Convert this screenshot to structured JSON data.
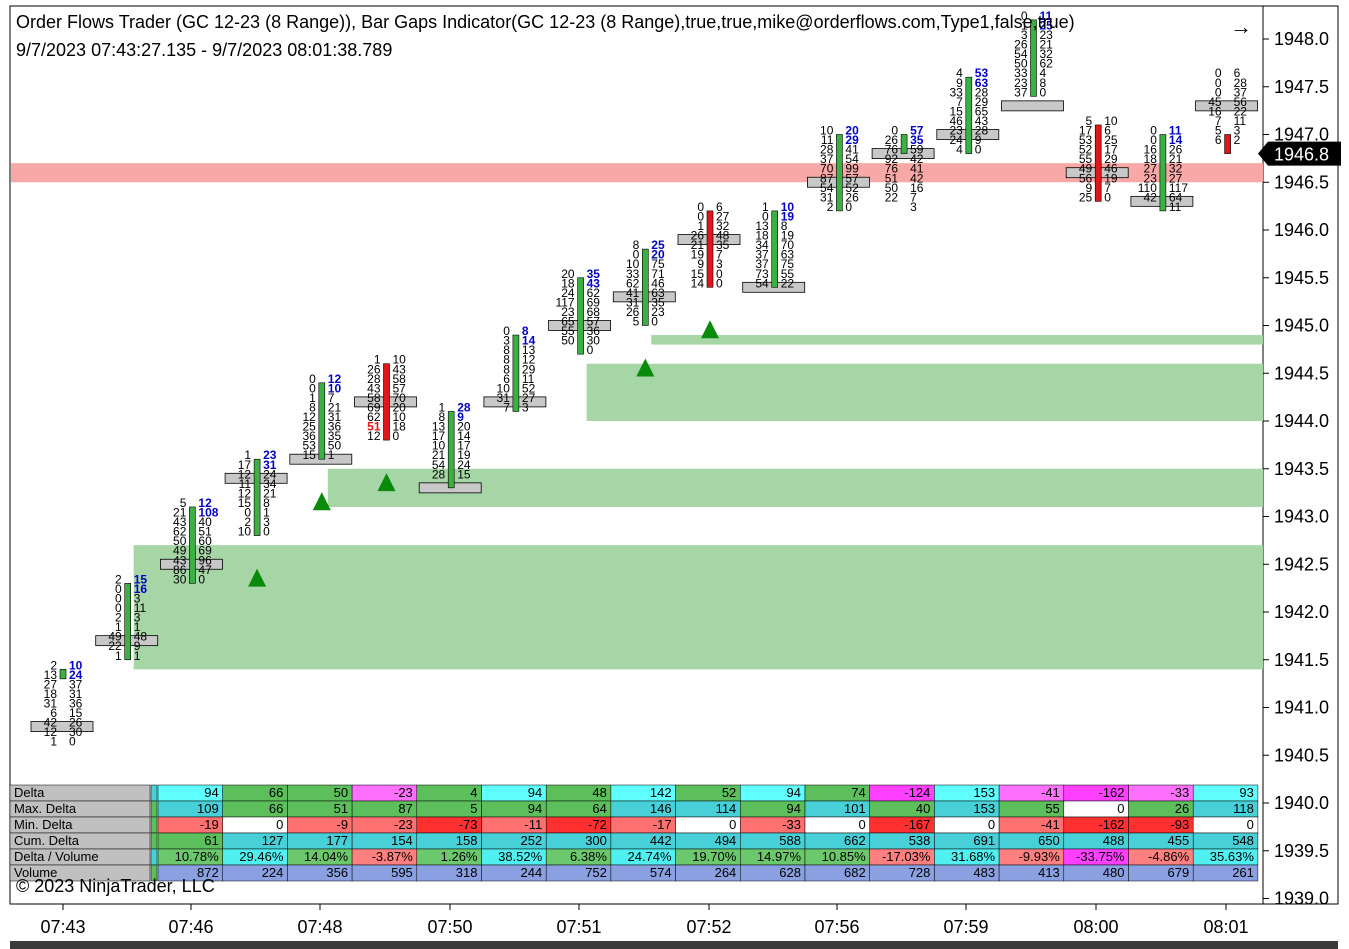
{
  "window": {
    "title": "Order Flows Trader (GC 12-23 (8 Range)), Bar Gaps Indicator(GC 12-23 (8 Range),true,true,mike@orderflows.com,Type1,false,true)",
    "range": "9/7/2023 07:43:27.135 - 9/7/2023 08:01:38.789",
    "copyright": "© 2023 NinjaTrader, LLC",
    "nav_arrow": "→"
  },
  "colors": {
    "up": "#3cb043",
    "down": "#e0161b",
    "gap_up": "#a6d5a6",
    "gap_down": "#f9a8a8",
    "poc": "#c8c8c8",
    "blue": "#0000c8",
    "red": "#e61414",
    "marker": "#0a8a0a"
  },
  "chart_data": {
    "type": "table",
    "y_axis": {
      "min": 1939.0,
      "max": 1948.0,
      "ticks": [
        "1948.0",
        "1947.5",
        "1947.0",
        "1946.5",
        "1946.0",
        "1945.5",
        "1945.0",
        "1944.5",
        "1944.0",
        "1943.5",
        "1943.0",
        "1942.5",
        "1942.0",
        "1941.5",
        "1941.0",
        "1940.5",
        "1940.0",
        "1939.5",
        "1939.0"
      ],
      "last_price": "1946.8"
    },
    "x_labels": [
      "07:43",
      "07:46",
      "07:48",
      "07:50",
      "07:51",
      "07:52",
      "07:56",
      "07:59",
      "08:00",
      "08:01"
    ],
    "gaps": [
      {
        "type": "down",
        "from": 1946.5,
        "to": 1946.7,
        "start_bar": 0
      },
      {
        "type": "up",
        "from": 1941.4,
        "to": 1942.7,
        "start_bar": 1
      },
      {
        "type": "up",
        "from": 1943.1,
        "to": 1943.5,
        "start_bar": 4
      },
      {
        "type": "up",
        "from": 1944.0,
        "to": 1944.6,
        "start_bar": 8
      },
      {
        "type": "up",
        "from": 1944.8,
        "to": 1944.9,
        "start_bar": 9
      }
    ],
    "triangles": [
      3,
      4,
      5,
      9,
      10
    ],
    "bars": [
      {
        "top": 1941.4,
        "open": 1941.3,
        "close": 1941.4,
        "poc": 1940.8,
        "dir": "up",
        "bid": [
          "2",
          "13",
          "27",
          "18",
          "31",
          "6",
          "42",
          "12",
          "1"
        ],
        "ask": [
          "10",
          "24",
          "37",
          "31",
          "36",
          "15",
          "26",
          "30",
          "0"
        ]
      },
      {
        "top": 1942.3,
        "open": 1941.5,
        "close": 1942.3,
        "poc": 1941.7,
        "dir": "up",
        "bid": [
          "2",
          "0",
          "0",
          "0",
          "2",
          "1",
          "49",
          "22",
          "1"
        ],
        "ask": [
          "15",
          "16",
          "3",
          "11",
          "3",
          "1",
          "48",
          "9",
          "1"
        ]
      },
      {
        "top": 1943.1,
        "open": 1942.3,
        "close": 1943.1,
        "poc": 1942.5,
        "dir": "up",
        "bid": [
          "5",
          "21",
          "43",
          "62",
          "50",
          "49",
          "43",
          "86",
          "30"
        ],
        "ask": [
          "12",
          "108",
          "40",
          "51",
          "60",
          "69",
          "96",
          "47",
          "0"
        ]
      },
      {
        "top": 1943.6,
        "open": 1942.8,
        "close": 1943.6,
        "poc": 1943.4,
        "dir": "up",
        "bid": [
          "1",
          "17",
          "12",
          "11",
          "12",
          "15",
          "0",
          "2",
          "10"
        ],
        "ask": [
          "23",
          "31",
          "24",
          "34",
          "21",
          "8",
          "1",
          "3",
          "0"
        ]
      },
      {
        "top": 1944.4,
        "open": 1943.6,
        "close": 1944.4,
        "poc": 1943.6,
        "dir": "up",
        "bid": [
          "0",
          "0",
          "1",
          "8",
          "12",
          "25",
          "36",
          "53",
          "15"
        ],
        "ask": [
          "12",
          "10",
          "7",
          "21",
          "31",
          "36",
          "35",
          "50",
          "1"
        ]
      },
      {
        "top": 1944.6,
        "open": 1944.6,
        "close": 1943.8,
        "poc": 1944.2,
        "dir": "down",
        "bid": [
          "1",
          "26",
          "28",
          "43",
          "58",
          "69",
          "62",
          "51",
          "12"
        ],
        "ask": [
          "10",
          "43",
          "58",
          "57",
          "70",
          "20",
          "10",
          "18",
          "0"
        ]
      },
      {
        "top": 1944.1,
        "open": 1943.3,
        "close": 1944.1,
        "poc": 1943.3,
        "dir": "up",
        "bid": [
          "1",
          "8",
          "13",
          "17",
          "10",
          "21",
          "54",
          "28"
        ],
        "ask": [
          "28",
          "9",
          "20",
          "14",
          "17",
          "19",
          "24",
          "15"
        ]
      },
      {
        "top": 1944.9,
        "open": 1944.1,
        "close": 1944.9,
        "poc": 1944.2,
        "dir": "up",
        "bid": [
          "0",
          "3",
          "8",
          "8",
          "8",
          "6",
          "10",
          "31",
          "7"
        ],
        "ask": [
          "8",
          "14",
          "13",
          "12",
          "29",
          "11",
          "52",
          "27",
          "3"
        ]
      },
      {
        "top": 1945.5,
        "open": 1944.7,
        "close": 1945.5,
        "poc": 1945.0,
        "dir": "up",
        "bid": [
          "20",
          "18",
          "24",
          "117",
          "23",
          "65",
          "55",
          "50"
        ],
        "ask": [
          "35",
          "43",
          "62",
          "69",
          "68",
          "57",
          "36",
          "30",
          "0"
        ]
      },
      {
        "top": 1945.8,
        "open": 1945.0,
        "close": 1945.8,
        "poc": 1945.3,
        "dir": "up",
        "bid": [
          "8",
          "0",
          "10",
          "33",
          "62",
          "41",
          "31",
          "26",
          "5"
        ],
        "ask": [
          "25",
          "20",
          "75",
          "71",
          "46",
          "63",
          "35",
          "23",
          "0"
        ]
      },
      {
        "top": 1946.2,
        "open": 1946.2,
        "close": 1945.4,
        "poc": 1945.9,
        "dir": "down",
        "bid": [
          "0",
          "0",
          "1",
          "26",
          "21",
          "19",
          "9",
          "15",
          "14"
        ],
        "ask": [
          "6",
          "27",
          "32",
          "48",
          "35",
          "7",
          "3",
          "0",
          "0"
        ]
      },
      {
        "top": 1946.2,
        "open": 1945.4,
        "close": 1946.2,
        "poc": 1945.4,
        "dir": "up",
        "bid": [
          "1",
          "0",
          "13",
          "18",
          "34",
          "37",
          "37",
          "73",
          "54"
        ],
        "ask": [
          "10",
          "19",
          "8",
          "19",
          "70",
          "63",
          "75",
          "55",
          "22"
        ]
      },
      {
        "top": 1947.0,
        "open": 1946.2,
        "close": 1947.0,
        "poc": 1946.5,
        "dir": "up",
        "bid": [
          "10",
          "11",
          "28",
          "37",
          "70",
          "87",
          "54",
          "31",
          "2"
        ],
        "ask": [
          "20",
          "29",
          "41",
          "54",
          "99",
          "57",
          "52",
          "26",
          "0"
        ]
      },
      {
        "top": 1947.0,
        "open": 1946.8,
        "close": 1947.0,
        "poc": 1946.8,
        "dir": "up",
        "bid": [
          "0",
          "26",
          "76",
          "92",
          "76",
          "51",
          "50",
          "22"
        ],
        "ask": [
          "57",
          "35",
          "59",
          "42",
          "41",
          "42",
          "16",
          "7",
          "3"
        ]
      },
      {
        "top": 1947.6,
        "open": 1946.8,
        "close": 1947.6,
        "poc": 1947.0,
        "dir": "up",
        "bid": [
          "4",
          "9",
          "33",
          "7",
          "15",
          "46",
          "23",
          "24",
          "4"
        ],
        "ask": [
          "53",
          "63",
          "28",
          "29",
          "65",
          "43",
          "28",
          "9",
          "0"
        ]
      },
      {
        "top": 1948.2,
        "open": 1947.4,
        "close": 1948.2,
        "poc": 1947.3,
        "dir": "up",
        "bid": [
          "0",
          "1",
          "3",
          "26",
          "54",
          "50",
          "33",
          "23",
          "37"
        ],
        "ask": [
          "11",
          "25",
          "23",
          "21",
          "32",
          "62",
          "4",
          "8",
          "0"
        ]
      },
      {
        "top": 1947.1,
        "open": 1947.1,
        "close": 1946.3,
        "poc": 1946.6,
        "dir": "down",
        "bid": [
          "5",
          "17",
          "53",
          "52",
          "55",
          "49",
          "56",
          "9",
          "25"
        ],
        "ask": [
          "10",
          "6",
          "25",
          "17",
          "29",
          "46",
          "19",
          "7",
          "0"
        ]
      },
      {
        "top": 1947.0,
        "open": 1946.2,
        "close": 1947.0,
        "poc": 1946.3,
        "dir": "up",
        "bid": [
          "0",
          "0",
          "16",
          "18",
          "27",
          "23",
          "110",
          "42"
        ],
        "ask": [
          "11",
          "14",
          "26",
          "21",
          "32",
          "27",
          "117",
          "64",
          "11"
        ]
      },
      {
        "top": 1947.6,
        "open": 1947.0,
        "close": 1946.8,
        "poc": 1947.3,
        "dir": "down",
        "bid": [
          "0",
          "0",
          "0",
          "45",
          "16",
          "7",
          "5",
          "6"
        ],
        "ask": [
          "6",
          "28",
          "37",
          "56",
          "22",
          "11",
          "3",
          "2"
        ]
      }
    ],
    "table": {
      "rows": [
        {
          "label": "Delta",
          "values": [
            "94",
            "66",
            "50",
            "-23",
            "4",
            "94",
            "48",
            "142",
            "52",
            "94",
            "74",
            "-124",
            "153",
            "-41",
            "-162",
            "-33",
            "93"
          ]
        },
        {
          "label": "Max. Delta",
          "values": [
            "109",
            "66",
            "51",
            "87",
            "5",
            "94",
            "64",
            "146",
            "114",
            "94",
            "101",
            "40",
            "153",
            "55",
            "0",
            "26",
            "118"
          ]
        },
        {
          "label": "Min. Delta",
          "values": [
            "-19",
            "0",
            "-9",
            "-23",
            "-73",
            "-11",
            "-72",
            "-17",
            "0",
            "-33",
            "0",
            "-167",
            "0",
            "-41",
            "-162",
            "-93",
            "0"
          ]
        },
        {
          "label": "Cum. Delta",
          "values": [
            "61",
            "127",
            "177",
            "154",
            "158",
            "252",
            "300",
            "442",
            "494",
            "588",
            "662",
            "538",
            "691",
            "650",
            "488",
            "455",
            "548"
          ]
        },
        {
          "label": "Delta / Volume",
          "values": [
            "10.78%",
            "29.46%",
            "14.04%",
            "-3.87%",
            "1.26%",
            "38.52%",
            "6.38%",
            "24.74%",
            "19.70%",
            "14.97%",
            "10.85%",
            "-17.03%",
            "31.68%",
            "-9.93%",
            "-33.75%",
            "-4.86%",
            "35.63%"
          ]
        },
        {
          "label": "Volume",
          "values": [
            "872",
            "224",
            "356",
            "595",
            "318",
            "244",
            "752",
            "574",
            "264",
            "628",
            "682",
            "728",
            "483",
            "413",
            "480",
            "679",
            "261"
          ]
        }
      ]
    }
  }
}
